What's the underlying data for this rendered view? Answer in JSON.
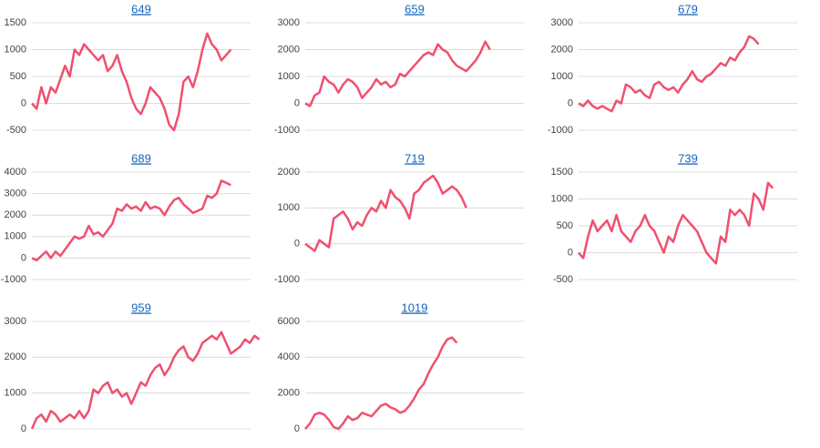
{
  "chart_data": [
    {
      "type": "line",
      "title": "649",
      "color": "#f0506e",
      "ylim": [
        -500,
        1500
      ],
      "yticks": [
        -500,
        0,
        500,
        1000,
        1500
      ],
      "grid": true,
      "values": [
        0,
        -100,
        300,
        0,
        300,
        200,
        450,
        700,
        500,
        1000,
        900,
        1100,
        1000,
        900,
        800,
        900,
        600,
        700,
        900,
        600,
        400,
        100,
        -100,
        -200,
        0,
        300,
        200,
        100,
        -100,
        -400,
        -500,
        -200,
        400,
        500,
        300,
        600,
        1000,
        1300,
        1100,
        1000,
        800,
        900,
        1000
      ]
    },
    {
      "type": "line",
      "title": "659",
      "color": "#f0506e",
      "ylim": [
        -1000,
        3000
      ],
      "yticks": [
        -1000,
        0,
        1000,
        2000,
        3000
      ],
      "grid": true,
      "values": [
        0,
        -100,
        300,
        400,
        1000,
        800,
        700,
        400,
        700,
        900,
        800,
        600,
        200,
        400,
        600,
        900,
        700,
        800,
        600,
        700,
        1100,
        1000,
        1200,
        1400,
        1600,
        1800,
        1900,
        1800,
        2200,
        2000,
        1900,
        1600,
        1400,
        1300,
        1200,
        1400,
        1600,
        1900,
        2300,
        2000
      ]
    },
    {
      "type": "line",
      "title": "679",
      "color": "#f0506e",
      "ylim": [
        -1000,
        3000
      ],
      "yticks": [
        -1000,
        0,
        1000,
        2000,
        3000
      ],
      "grid": true,
      "values": [
        0,
        -100,
        100,
        -100,
        -200,
        -100,
        -200,
        -300,
        100,
        0,
        700,
        600,
        400,
        500,
        300,
        200,
        700,
        800,
        600,
        500,
        600,
        400,
        700,
        900,
        1200,
        900,
        800,
        1000,
        1100,
        1300,
        1500,
        1400,
        1700,
        1600,
        1900,
        2100,
        2500,
        2400,
        2200
      ]
    },
    {
      "type": "line",
      "title": "689",
      "color": "#f0506e",
      "ylim": [
        -1000,
        4000
      ],
      "yticks": [
        -1000,
        0,
        1000,
        2000,
        3000,
        4000
      ],
      "grid": true,
      "values": [
        0,
        -100,
        100,
        300,
        0,
        300,
        100,
        400,
        700,
        1000,
        900,
        1000,
        1500,
        1100,
        1200,
        1000,
        1300,
        1600,
        2300,
        2200,
        2500,
        2300,
        2400,
        2200,
        2600,
        2300,
        2400,
        2300,
        2000,
        2400,
        2700,
        2800,
        2500,
        2300,
        2100,
        2200,
        2300,
        2900,
        2800,
        3000,
        3600,
        3500,
        3400
      ]
    },
    {
      "type": "line",
      "title": "719",
      "color": "#f0506e",
      "ylim": [
        -1000,
        2000
      ],
      "yticks": [
        -1000,
        0,
        1000,
        2000
      ],
      "grid": true,
      "values": [
        0,
        -100,
        -200,
        100,
        0,
        -100,
        700,
        800,
        900,
        700,
        400,
        600,
        500,
        800,
        1000,
        900,
        1200,
        1000,
        1500,
        1300,
        1200,
        1000,
        700,
        1400,
        1500,
        1700,
        1800,
        1900,
        1700,
        1400,
        1500,
        1600,
        1500,
        1300,
        1000
      ]
    },
    {
      "type": "line",
      "title": "739",
      "color": "#f0506e",
      "ylim": [
        -500,
        1500
      ],
      "yticks": [
        -500,
        0,
        500,
        1000,
        1500
      ],
      "grid": true,
      "values": [
        0,
        -100,
        300,
        600,
        400,
        500,
        600,
        400,
        700,
        400,
        300,
        200,
        400,
        500,
        700,
        500,
        400,
        200,
        0,
        300,
        200,
        500,
        700,
        600,
        500,
        400,
        200,
        0,
        -100,
        -200,
        300,
        200,
        800,
        700,
        800,
        700,
        500,
        1100,
        1000,
        800,
        1300,
        1200
      ]
    },
    {
      "type": "line",
      "title": "959",
      "color": "#f0506e",
      "ylim": [
        0,
        3000
      ],
      "yticks": [
        0,
        1000,
        2000,
        3000
      ],
      "grid": true,
      "values": [
        0,
        300,
        400,
        200,
        500,
        400,
        200,
        300,
        400,
        300,
        500,
        300,
        500,
        1100,
        1000,
        1200,
        1300,
        1000,
        1100,
        900,
        1000,
        700,
        1000,
        1300,
        1200,
        1500,
        1700,
        1800,
        1500,
        1700,
        2000,
        2200,
        2300,
        2000,
        1900,
        2100,
        2400,
        2500,
        2600,
        2500,
        2700,
        2400,
        2100,
        2200,
        2300,
        2500,
        2400,
        2600,
        2500
      ]
    },
    {
      "type": "line",
      "title": "1019",
      "color": "#f0506e",
      "ylim": [
        0,
        6000
      ],
      "yticks": [
        0,
        2000,
        4000,
        6000
      ],
      "grid": true,
      "values": [
        0,
        300,
        800,
        900,
        800,
        500,
        100,
        0,
        300,
        700,
        500,
        600,
        900,
        800,
        700,
        1000,
        1300,
        1400,
        1200,
        1100,
        900,
        1000,
        1300,
        1700,
        2200,
        2500,
        3100,
        3600,
        4000,
        4600,
        5000,
        5100,
        4800
      ]
    }
  ]
}
